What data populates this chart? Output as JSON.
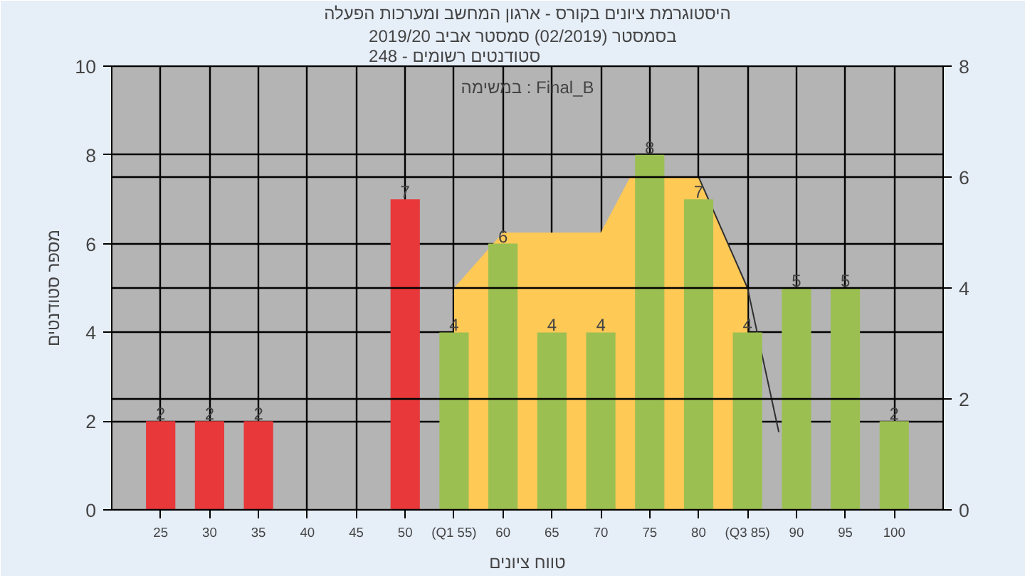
{
  "chart_data": {
    "type": "bar",
    "title": "היסטוגרמת ציונים בקורס - ארגון המחשב ומערכות הפעלה",
    "subtitle": "בסמסטר  (02/2019)  סמסטר אביב 2019/20\nסטודנטים רשומים - 248",
    "xlabel": "טווח ציונים",
    "ylabel": "מספר סטודנטים",
    "annotations": [
      "במשימה : Final_B"
    ],
    "xlim": [
      20,
      105
    ],
    "xticks": [
      25,
      30,
      35,
      40,
      45,
      50,
      {
        "value": 55,
        "label": "(Q1 55)"
      },
      60,
      65,
      70,
      75,
      80,
      {
        "value": 85,
        "label": "(Q3 85)"
      },
      90,
      95,
      100
    ],
    "ylim": [
      0,
      10
    ],
    "yticks": [
      0,
      2,
      4,
      6,
      8,
      10
    ],
    "y2lim": [
      0,
      8
    ],
    "y2ticks": [
      0,
      2,
      4,
      6,
      8
    ],
    "grid": true,
    "series": [
      {
        "type": "area",
        "axis": "y2",
        "color": "#ffc956",
        "x": [
          55,
          60,
          70,
          73,
          80,
          85
        ],
        "values": [
          4,
          5,
          5,
          6,
          6,
          4
        ]
      },
      {
        "type": "line",
        "axis": "y2",
        "color": "#303030",
        "x": [
          80,
          85,
          88.2
        ],
        "values": [
          6,
          4,
          1.4
        ]
      },
      {
        "type": "bar",
        "x": [
          25,
          30,
          35,
          50,
          55,
          60,
          65,
          70,
          75,
          80,
          85,
          90,
          95,
          100
        ],
        "values": [
          2,
          2,
          2,
          7,
          4,
          6,
          4,
          4,
          8,
          7,
          4,
          5,
          5,
          2
        ],
        "colors": [
          "#e8383a",
          "#e8383a",
          "#e8383a",
          "#e8383a",
          "#9cbf52",
          "#9cbf52",
          "#9cbf52",
          "#9cbf52",
          "#9cbf52",
          "#9cbf52",
          "#9cbf52",
          "#9cbf52",
          "#9cbf52",
          "#9cbf52"
        ],
        "value_labels": [
          "2",
          "2",
          "2",
          "7",
          "4",
          "6",
          "4",
          "4",
          "8",
          "7",
          "4",
          "5",
          "5",
          "2"
        ]
      }
    ]
  }
}
